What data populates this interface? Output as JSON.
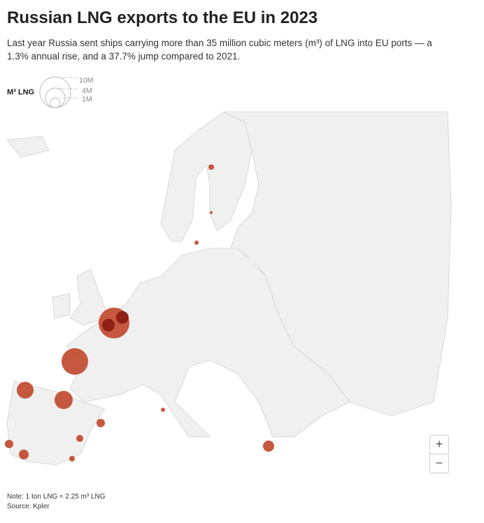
{
  "header": {
    "title": "Russian LNG exports to the EU in 2023",
    "subtitle": "Last year Russia sent ships carrying more than 35 million cubic meters (m³) of LNG into EU ports — a 1.3% annual rise, and a 37.7% jump compared to 2021."
  },
  "legend": {
    "label": "M³ LNG",
    "sizes": [
      "10M",
      "4M",
      "1M"
    ]
  },
  "colors": {
    "bubble": "#c0462a",
    "land": "#f0f0f0",
    "border": "#cfcfcf"
  },
  "controls": {
    "zoom_in": "+",
    "zoom_out": "−"
  },
  "footer": {
    "note": "Note: 1 ton LNG ≈ 2.25 m³ LNG",
    "source": "Source: Kpler"
  }
}
